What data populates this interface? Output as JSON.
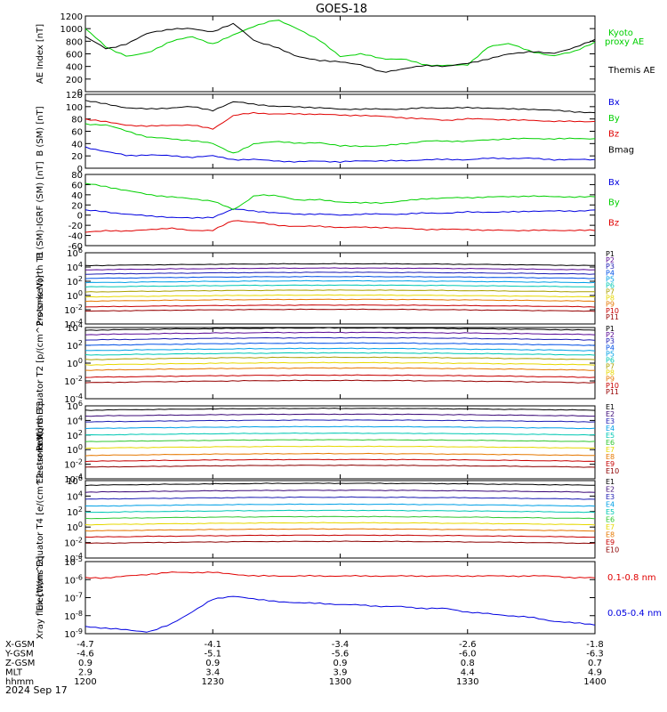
{
  "title": "GOES-18",
  "date": "2024 Sep 17",
  "colors": {
    "black": "#000000",
    "red": "#e00000",
    "green": "#00d000",
    "blue": "#0000e0"
  },
  "x_axis": {
    "ticks": [
      "1200",
      "1230",
      "1300",
      "1330",
      "1400"
    ],
    "coord_rows": [
      {
        "label": "X-GSM",
        "values": [
          "-4.7",
          "-4.1",
          "-3.4",
          "-2.6",
          "-1.8"
        ]
      },
      {
        "label": "Y-GSM",
        "values": [
          "-4.6",
          "-5.1",
          "-5.6",
          "-6.0",
          "-6.3"
        ]
      },
      {
        "label": "Z-GSM",
        "values": [
          "0.9",
          "0.9",
          "0.9",
          "0.8",
          "0.7"
        ]
      },
      {
        "label": "MLT",
        "values": [
          "2.9",
          "3.4",
          "3.9",
          "4.4",
          "4.9"
        ]
      },
      {
        "label": "hhmm",
        "values": [
          "1200",
          "1230",
          "1300",
          "1330",
          "1400"
        ]
      }
    ]
  },
  "chart_data": [
    {
      "type": "line",
      "ylabel": "AE Index [nT]",
      "ylim": [
        0,
        1200
      ],
      "yticks": [
        "0",
        "200",
        "400",
        "600",
        "800",
        "1000",
        "1200"
      ],
      "x": [
        "12:00",
        "12:05",
        "12:10",
        "12:15",
        "12:20",
        "12:25",
        "12:30",
        "12:35",
        "12:40",
        "12:45",
        "12:50",
        "12:55",
        "13:00",
        "13:05",
        "13:10",
        "13:15",
        "13:20",
        "13:25",
        "13:30",
        "13:35",
        "13:40",
        "13:45",
        "13:50",
        "13:55",
        "14:00"
      ],
      "series": [
        {
          "name": "Kyoto proxy AE",
          "color": "#00d000",
          "values": [
            1000,
            700,
            560,
            620,
            800,
            870,
            760,
            900,
            1050,
            1140,
            1000,
            820,
            560,
            600,
            520,
            520,
            420,
            420,
            420,
            720,
            760,
            640,
            560,
            640,
            780
          ]
        },
        {
          "name": "Themis AE",
          "color": "#000000",
          "values": [
            870,
            680,
            760,
            940,
            990,
            1000,
            950,
            1080,
            800,
            700,
            560,
            490,
            480,
            420,
            310,
            360,
            420,
            400,
            450,
            520,
            600,
            640,
            600,
            700,
            820
          ]
        }
      ],
      "legend": [
        "Kyoto",
        "proxy AE",
        "Themis AE"
      ]
    },
    {
      "type": "line",
      "ylabel": "B (SM) [nT]",
      "ylim": [
        0,
        120
      ],
      "yticks": [
        "0",
        "20",
        "40",
        "60",
        "80",
        "100",
        "120"
      ],
      "series": [
        {
          "name": "Bx",
          "color": "#0000e0",
          "values": [
            34,
            27,
            20,
            22,
            20,
            18,
            20,
            14,
            14,
            12,
            10,
            12,
            10,
            12,
            12,
            12,
            14,
            14,
            14,
            16,
            16,
            16,
            14,
            14,
            14
          ]
        },
        {
          "name": "By",
          "color": "#00d000",
          "values": [
            72,
            70,
            60,
            50,
            48,
            45,
            40,
            24,
            40,
            44,
            40,
            42,
            36,
            36,
            36,
            40,
            44,
            44,
            44,
            46,
            48,
            48,
            48,
            48,
            48
          ]
        },
        {
          "name": "Bz",
          "color": "#e00000",
          "values": [
            80,
            75,
            70,
            68,
            70,
            70,
            64,
            86,
            90,
            88,
            88,
            88,
            86,
            86,
            84,
            82,
            80,
            78,
            80,
            80,
            78,
            78,
            76,
            76,
            76
          ]
        },
        {
          "name": "Bmag",
          "color": "#000000",
          "values": [
            110,
            104,
            98,
            96,
            98,
            100,
            94,
            108,
            104,
            100,
            100,
            98,
            96,
            96,
            96,
            96,
            98,
            98,
            98,
            98,
            96,
            96,
            94,
            92,
            90
          ]
        }
      ]
    },
    {
      "type": "line",
      "ylabel": "B (SM)-IGRF (SM) [nT]",
      "ylim": [
        -60,
        80
      ],
      "yticks": [
        "-60",
        "-40",
        "-20",
        "0",
        "20",
        "40",
        "60",
        "80"
      ],
      "series": [
        {
          "name": "Bx",
          "color": "#0000e0",
          "values": [
            10,
            6,
            2,
            -2,
            -4,
            -6,
            -4,
            12,
            8,
            4,
            2,
            2,
            0,
            2,
            2,
            2,
            4,
            4,
            6,
            6,
            6,
            8,
            8,
            8,
            10
          ]
        },
        {
          "name": "By",
          "color": "#00d000",
          "values": [
            62,
            56,
            48,
            40,
            36,
            32,
            28,
            10,
            40,
            38,
            30,
            30,
            26,
            24,
            24,
            28,
            32,
            34,
            34,
            36,
            36,
            38,
            36,
            36,
            36
          ]
        },
        {
          "name": "Bz",
          "color": "#e00000",
          "values": [
            -34,
            -30,
            -32,
            -28,
            -26,
            -30,
            -30,
            -10,
            -14,
            -20,
            -22,
            -22,
            -24,
            -24,
            -24,
            -26,
            -28,
            -28,
            -28,
            -30,
            -30,
            -30,
            -30,
            -30,
            -30
          ]
        }
      ]
    },
    {
      "type": "line",
      "log_scale": true,
      "ylabel": "Protons North T1",
      "ylim_exp": [
        -4,
        6
      ],
      "yticks": [
        "10^-4",
        "10^-2",
        "10^0",
        "10^2",
        "10^4",
        "10^6"
      ],
      "series_labels": [
        "P1",
        "P2",
        "P3",
        "P4",
        "P5",
        "P6",
        "P7",
        "P8",
        "P9",
        "P10",
        "P11"
      ],
      "series_colors": [
        "#000000",
        "#5a0a96",
        "#1e1eb4",
        "#0050e6",
        "#00a0e6",
        "#00c8b4",
        "#aaa000",
        "#e6d800",
        "#e67800",
        "#c80000",
        "#960000"
      ],
      "series_log_values": [
        4.2,
        3.6,
        3.0,
        2.4,
        1.8,
        1.2,
        0.5,
        -0.2,
        -0.8,
        -1.6,
        -2.2
      ]
    },
    {
      "type": "line",
      "log_scale": true,
      "ylabel": "Protons Equator T2 [p/(cm^2-s-sr-keV)]",
      "ylim_exp": [
        -4,
        4
      ],
      "yticks": [
        "10^-4",
        "10^-2",
        "10^0",
        "10^2",
        "10^4"
      ],
      "series_labels": [
        "P1",
        "P2",
        "P3",
        "P4",
        "P5",
        "P6",
        "P7",
        "P8",
        "P9",
        "P10",
        "P11"
      ],
      "series_colors": [
        "#000000",
        "#5a0a96",
        "#1e1eb4",
        "#0050e6",
        "#00a0e6",
        "#00c8b4",
        "#aaa000",
        "#e6d800",
        "#e67800",
        "#c80000",
        "#960000"
      ],
      "series_log_values": [
        3.7,
        3.2,
        2.6,
        2.0,
        1.4,
        0.9,
        0.4,
        -0.2,
        -0.8,
        -1.6,
        -2.2
      ]
    },
    {
      "type": "line",
      "log_scale": true,
      "ylabel": "Electrons North T3",
      "ylim_exp": [
        -4,
        6
      ],
      "yticks": [
        "10^-4",
        "10^-2",
        "10^0",
        "10^2",
        "10^4",
        "10^6"
      ],
      "series_labels": [
        "E1",
        "E2",
        "E3",
        "E4",
        "E5",
        "E6",
        "E7",
        "E8",
        "E9",
        "E10"
      ],
      "series_colors": [
        "#000000",
        "#3c0a78",
        "#1e1eb4",
        "#00a0e6",
        "#00c8b4",
        "#32c832",
        "#e6d800",
        "#e67800",
        "#c80000",
        "#8c0000"
      ],
      "series_log_values": [
        5.4,
        4.6,
        3.8,
        2.9,
        2.0,
        1.1,
        0.2,
        -0.8,
        -1.6,
        -2.4
      ]
    },
    {
      "type": "line",
      "log_scale": true,
      "ylabel": "Electrons Equator T4 [e/(cm^2-s-sr-keV)]",
      "ylim_exp": [
        -4,
        6
      ],
      "yticks": [
        "10^-4",
        "10^-2",
        "10^0",
        "10^2",
        "10^4",
        "10^6"
      ],
      "series_labels": [
        "E1",
        "E2",
        "E3",
        "E4",
        "E5",
        "E6",
        "E7",
        "E8",
        "E9",
        "E10"
      ],
      "series_colors": [
        "#000000",
        "#3c0a78",
        "#1e1eb4",
        "#00a0e6",
        "#00c8b4",
        "#32c832",
        "#e6d800",
        "#e67800",
        "#c80000",
        "#8c0000"
      ],
      "series_log_values": [
        5.4,
        4.5,
        3.6,
        2.7,
        1.9,
        1.1,
        0.3,
        -0.5,
        -1.3,
        -2.1
      ]
    },
    {
      "type": "line",
      "log_scale": true,
      "ylabel": "Xray flux [W/m^2]",
      "ylim_exp": [
        -9,
        -5
      ],
      "yticks": [
        "10^-9",
        "10^-8",
        "10^-7",
        "10^-6",
        "10^-5"
      ],
      "series": [
        {
          "name": "0.1-0.8 nm",
          "color": "#e00000",
          "log_values": [
            -5.9,
            -5.9,
            -5.8,
            -5.7,
            -5.6,
            -5.6,
            -5.6,
            -5.7,
            -5.8,
            -5.8,
            -5.8,
            -5.8,
            -5.8,
            -5.8,
            -5.8,
            -5.8,
            -5.8,
            -5.8,
            -5.8,
            -5.8,
            -5.8,
            -5.8,
            -5.8,
            -5.9,
            -5.9
          ]
        },
        {
          "name": "0.05-0.4 nm",
          "color": "#0000e0",
          "log_values": [
            -8.6,
            -8.7,
            -8.8,
            -8.9,
            -8.5,
            -7.8,
            -7.1,
            -6.9,
            -7.1,
            -7.2,
            -7.3,
            -7.3,
            -7.4,
            -7.4,
            -7.5,
            -7.5,
            -7.6,
            -7.6,
            -7.8,
            -7.9,
            -8.0,
            -8.1,
            -8.3,
            -8.4,
            -8.5
          ]
        }
      ]
    }
  ]
}
